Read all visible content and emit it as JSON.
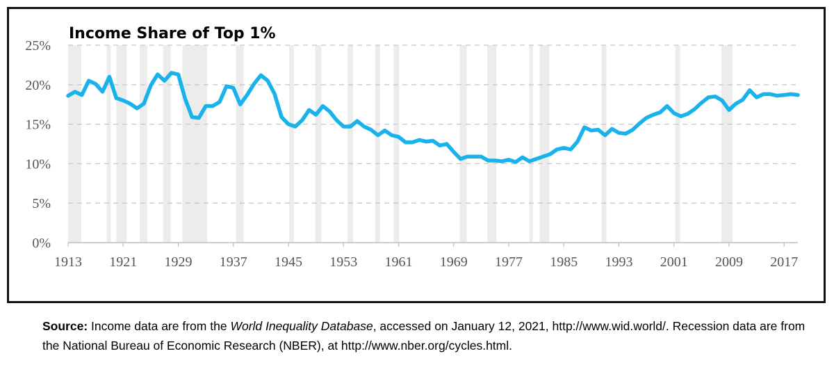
{
  "chart_data": {
    "type": "line",
    "title": "Income Share of Top 1%",
    "xlabel": "",
    "ylabel": "",
    "xlim": [
      1913,
      2019
    ],
    "ylim": [
      0,
      25
    ],
    "x_ticks": [
      "1913",
      "1921",
      "1929",
      "1937",
      "1945",
      "1953",
      "1961",
      "1969",
      "1977",
      "1985",
      "1993",
      "2001",
      "2009",
      "2017"
    ],
    "y_ticks": [
      "0%",
      "5%",
      "10%",
      "15%",
      "20%",
      "25%"
    ],
    "grid": "horizontal-dashed",
    "line_color": "#1ab2ea",
    "recession_color": "#ececec",
    "x": [
      1913,
      1914,
      1915,
      1916,
      1917,
      1918,
      1919,
      1920,
      1921,
      1922,
      1923,
      1924,
      1925,
      1926,
      1927,
      1928,
      1929,
      1930,
      1931,
      1932,
      1933,
      1934,
      1935,
      1936,
      1937,
      1938,
      1939,
      1940,
      1941,
      1942,
      1943,
      1944,
      1945,
      1946,
      1947,
      1948,
      1949,
      1950,
      1951,
      1952,
      1953,
      1954,
      1955,
      1956,
      1957,
      1958,
      1959,
      1960,
      1961,
      1962,
      1963,
      1964,
      1965,
      1966,
      1967,
      1968,
      1969,
      1970,
      1971,
      1972,
      1973,
      1974,
      1975,
      1976,
      1977,
      1978,
      1979,
      1980,
      1981,
      1982,
      1983,
      1984,
      1985,
      1986,
      1987,
      1988,
      1989,
      1990,
      1991,
      1992,
      1993,
      1994,
      1995,
      1996,
      1997,
      1998,
      1999,
      2000,
      2001,
      2002,
      2003,
      2004,
      2005,
      2006,
      2007,
      2008,
      2009,
      2010,
      2011,
      2012,
      2013,
      2014,
      2015,
      2016,
      2017,
      2018,
      2019
    ],
    "series": [
      {
        "values": [
          18.6,
          19.1,
          18.7,
          20.5,
          20.1,
          19.1,
          21.0,
          18.3,
          18.0,
          17.6,
          17.0,
          17.6,
          19.9,
          21.3,
          20.5,
          21.5,
          21.3,
          18.2,
          15.9,
          15.8,
          17.3,
          17.3,
          17.8,
          19.8,
          19.6,
          17.5,
          18.7,
          20.1,
          21.2,
          20.5,
          18.8,
          15.9,
          15.0,
          14.7,
          15.5,
          16.8,
          16.2,
          17.3,
          16.6,
          15.5,
          14.7,
          14.7,
          15.4,
          14.7,
          14.3,
          13.6,
          14.2,
          13.6,
          13.4,
          12.7,
          12.7,
          13.0,
          12.8,
          12.9,
          12.3,
          12.5,
          11.5,
          10.6,
          10.9,
          10.9,
          10.9,
          10.4,
          10.4,
          10.3,
          10.5,
          10.2,
          10.8,
          10.3,
          10.6,
          10.9,
          11.2,
          11.8,
          12.0,
          11.8,
          12.8,
          14.6,
          14.2,
          14.3,
          13.6,
          14.4,
          13.9,
          13.8,
          14.3,
          15.1,
          15.8,
          16.2,
          16.5,
          17.3,
          16.4,
          16.0,
          16.3,
          16.9,
          17.7,
          18.4,
          18.5,
          18.0,
          16.8,
          17.6,
          18.1,
          19.3,
          18.4,
          18.8,
          18.8,
          18.6,
          18.7,
          18.8,
          18.7
        ]
      }
    ],
    "recessions": [
      [
        1913.0,
        1914.9
      ],
      [
        1918.6,
        1919.2
      ],
      [
        1920.0,
        1921.5
      ],
      [
        1923.4,
        1924.5
      ],
      [
        1926.8,
        1927.9
      ],
      [
        1929.6,
        1933.2
      ],
      [
        1937.4,
        1938.5
      ],
      [
        1945.1,
        1945.8
      ],
      [
        1948.9,
        1949.8
      ],
      [
        1953.6,
        1954.4
      ],
      [
        1957.6,
        1958.3
      ],
      [
        1960.3,
        1961.1
      ],
      [
        1969.9,
        1970.9
      ],
      [
        1973.9,
        1975.2
      ],
      [
        1980.0,
        1980.5
      ],
      [
        1981.5,
        1982.9
      ],
      [
        1990.5,
        1991.2
      ],
      [
        2001.2,
        2001.9
      ],
      [
        2007.9,
        2009.5
      ]
    ]
  },
  "source": {
    "label": "Source:",
    "text1": "Income data are from the",
    "database": "World Inequality Database",
    "text2": ", accessed on January 12, 2021, http://www.wid.world/.  Recession data are from the National Bureau of Economic Research (NBER), at http://www.nber.org/cycles.html."
  }
}
